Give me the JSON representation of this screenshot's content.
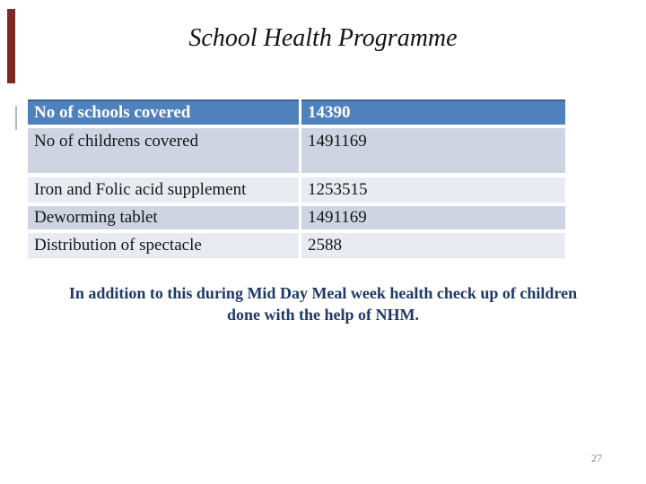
{
  "slide": {
    "title": "School Health Programme",
    "page_number": "27"
  },
  "table": {
    "rows": [
      {
        "label": "No of schools covered",
        "value": "14390"
      },
      {
        "label": "No of childrens covered",
        "value": "1491169"
      },
      {
        "label": "Iron and Folic acid supplement",
        "value": "1253515"
      },
      {
        "label": "Deworming tablet",
        "value": "1491169"
      },
      {
        "label": "Distribution of spectacle",
        "value": "2588"
      }
    ]
  },
  "note": {
    "lines": [
      "In addition to this during Mid Day Meal week health check up of children",
      "done with the help of NHM."
    ],
    "full_text": "In addition to this during Mid Day Meal week health check up of children done with the help of NHM."
  },
  "colors": {
    "header_blue": "#4f81bd",
    "band_dark": "#cfd4e2",
    "band_light": "#e9ebf3",
    "note_navy": "#1f3864",
    "accent_bar_red": "#7b2b23",
    "page_number_grey": "#7f7f7f"
  }
}
